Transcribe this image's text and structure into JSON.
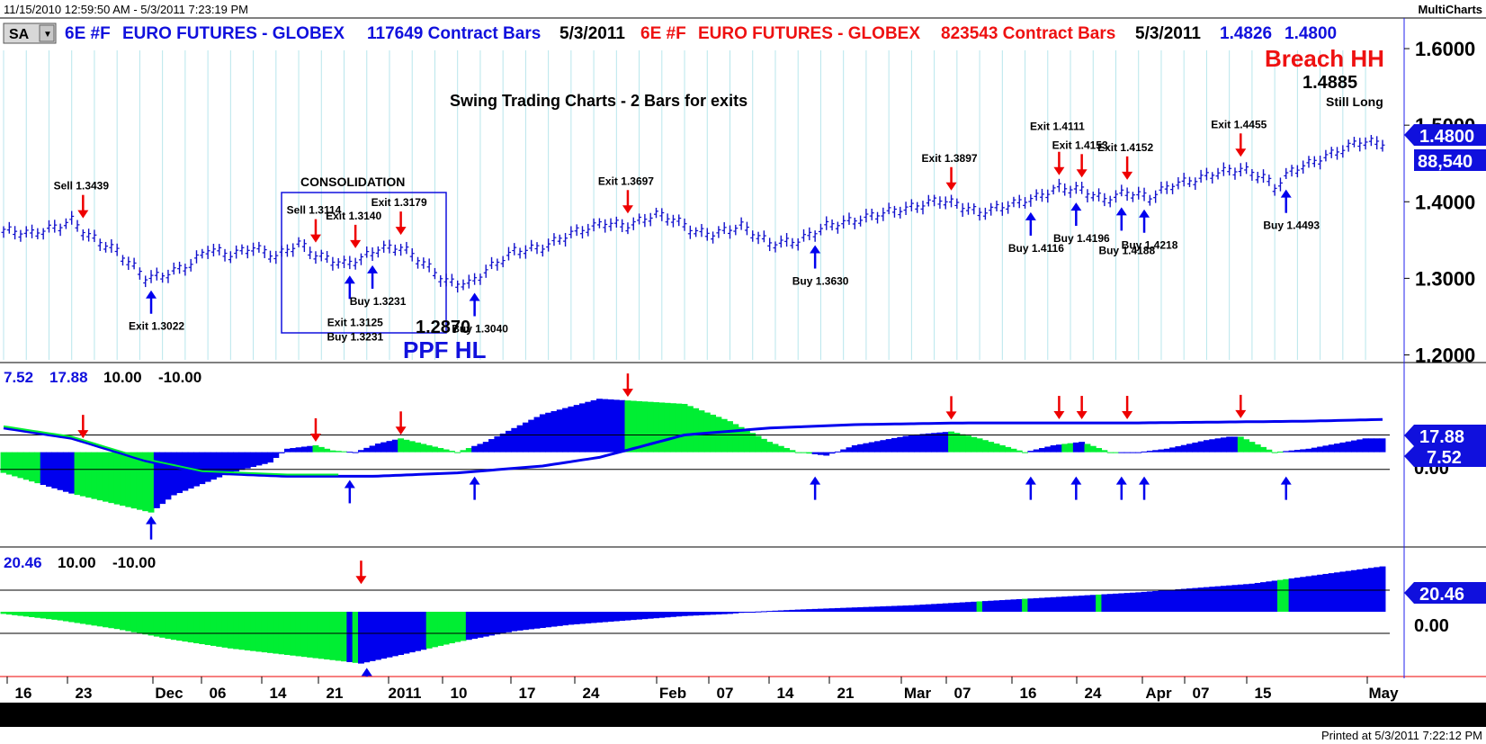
{
  "header": {
    "time_range": "11/15/2010 12:59:50 AM - 5/3/2011 7:23:19 PM",
    "brand": "MultiCharts",
    "sa_label": "SA",
    "symbol1": "6E #F",
    "name1": "EURO FUTURES - GLOBEX",
    "bars1": "117649 Contract Bars",
    "date1": "5/3/2011",
    "symbol2": "6E #F",
    "name2": "EURO FUTURES - GLOBEX",
    "bars2": "823543 Contract Bars",
    "date2": "5/3/2011",
    "quote1": "1.4826",
    "quote2": "1.4800"
  },
  "footer": {
    "printed": "Printed at 5/3/2011 7:22:12 PM"
  },
  "colors": {
    "bull": "#00ee33",
    "bear": "#0000ee",
    "sell": "#ee0000",
    "price": "#1010cc",
    "vline": "#b8e6ec"
  },
  "chart_data": [
    {
      "type": "line",
      "panel": "price",
      "title": "Swing Trading Charts - 2 Bars for exits",
      "ylim": [
        1.19,
        1.64
      ],
      "y_ticks": [
        "1.6000",
        "1.5000",
        "1.4000",
        "1.3000",
        "1.2000"
      ],
      "x_ticks": [
        "16",
        "23",
        "Dec",
        "06",
        "14",
        "21",
        "2011",
        "10",
        "17",
        "24",
        "Feb",
        "07",
        "14",
        "21",
        "Mar",
        "07",
        "16",
        "24",
        "Apr",
        "07",
        "15",
        "May"
      ],
      "last_price": "1.4800",
      "last_volume": "88,540",
      "annotations": {
        "breach": "Breach HH",
        "breach_value": "1.4885",
        "still_long": "Still Long",
        "consolidation": "CONSOLIDATION",
        "ppf_value": "1.2870",
        "ppf": "PPF HL"
      },
      "sell_signals": [
        {
          "label": "Sell 1.3439",
          "bar": 14
        },
        {
          "label": "Sell 1.3114",
          "bar": 55
        },
        {
          "label": "Exit 1.3140",
          "bar": 62
        },
        {
          "label": "Exit 1.3179",
          "bar": 70
        },
        {
          "label": "Exit 1.3697",
          "bar": 110
        },
        {
          "label": "Exit 1.3897",
          "bar": 167
        },
        {
          "label": "Exit 1.4111",
          "bar": 186
        },
        {
          "label": "Exit 1.4153",
          "bar": 190
        },
        {
          "label": "Exit 1.4152",
          "bar": 198
        },
        {
          "label": "Exit 1.4455",
          "bar": 218
        }
      ],
      "buy_signals": [
        {
          "label": "Exit 1.3022",
          "bar": 26
        },
        {
          "label": "Exit 1.3125",
          "bar": 61
        },
        {
          "label": "Buy 1.3231",
          "bar": 65
        },
        {
          "label": "Buy 1.3231",
          "bar": 61
        },
        {
          "label": "Buy 1.3040",
          "bar": 83
        },
        {
          "label": "Buy 1.3630",
          "bar": 143
        },
        {
          "label": "Buy 1.4116",
          "bar": 181
        },
        {
          "label": "Buy 1.4196",
          "bar": 189
        },
        {
          "label": "Buy 1.4188",
          "bar": 197
        },
        {
          "label": "Buy 1.4218",
          "bar": 201
        },
        {
          "label": "Buy 1.4493",
          "bar": 226
        }
      ],
      "price_knots": [
        [
          0,
          1.362
        ],
        [
          5,
          1.358
        ],
        [
          10,
          1.368
        ],
        [
          12,
          1.375
        ],
        [
          15,
          1.355
        ],
        [
          20,
          1.335
        ],
        [
          25,
          1.3
        ],
        [
          28,
          1.303
        ],
        [
          33,
          1.318
        ],
        [
          36,
          1.338
        ],
        [
          40,
          1.33
        ],
        [
          44,
          1.34
        ],
        [
          48,
          1.328
        ],
        [
          52,
          1.345
        ],
        [
          55,
          1.33
        ],
        [
          60,
          1.318
        ],
        [
          63,
          1.325
        ],
        [
          66,
          1.338
        ],
        [
          70,
          1.34
        ],
        [
          73,
          1.325
        ],
        [
          78,
          1.295
        ],
        [
          82,
          1.292
        ],
        [
          86,
          1.315
        ],
        [
          90,
          1.335
        ],
        [
          95,
          1.34
        ],
        [
          100,
          1.358
        ],
        [
          106,
          1.372
        ],
        [
          110,
          1.368
        ],
        [
          115,
          1.383
        ],
        [
          118,
          1.377
        ],
        [
          122,
          1.36
        ],
        [
          125,
          1.357
        ],
        [
          130,
          1.368
        ],
        [
          135,
          1.345
        ],
        [
          140,
          1.348
        ],
        [
          145,
          1.368
        ],
        [
          150,
          1.375
        ],
        [
          155,
          1.385
        ],
        [
          160,
          1.392
        ],
        [
          165,
          1.402
        ],
        [
          168,
          1.396
        ],
        [
          172,
          1.385
        ],
        [
          177,
          1.395
        ],
        [
          182,
          1.405
        ],
        [
          186,
          1.418
        ],
        [
          190,
          1.415
        ],
        [
          194,
          1.402
        ],
        [
          198,
          1.412
        ],
        [
          202,
          1.405
        ],
        [
          206,
          1.422
        ],
        [
          210,
          1.428
        ],
        [
          214,
          1.438
        ],
        [
          218,
          1.442
        ],
        [
          222,
          1.432
        ],
        [
          224,
          1.418
        ],
        [
          227,
          1.44
        ],
        [
          231,
          1.452
        ],
        [
          235,
          1.465
        ],
        [
          239,
          1.478
        ],
        [
          243,
          1.476
        ]
      ]
    },
    {
      "type": "area",
      "panel": "oscillator",
      "readouts": [
        "7.52",
        "17.88",
        "10.00",
        "-10.00"
      ],
      "ylim": [
        -55,
        52
      ],
      "y_ticks": [
        "0.00"
      ],
      "levels": [
        10,
        -10
      ],
      "last_values": [
        "17.88",
        "7.52"
      ],
      "osc_knots": [
        [
          0,
          -12
        ],
        [
          12,
          -24
        ],
        [
          26,
          -35
        ],
        [
          30,
          -25
        ],
        [
          40,
          -12
        ],
        [
          47,
          -6
        ],
        [
          50,
          2
        ],
        [
          55,
          4
        ],
        [
          58,
          1
        ],
        [
          62,
          0
        ],
        [
          66,
          5
        ],
        [
          70,
          8
        ],
        [
          75,
          4
        ],
        [
          80,
          0
        ],
        [
          85,
          6
        ],
        [
          95,
          22
        ],
        [
          105,
          31
        ],
        [
          110,
          30
        ],
        [
          120,
          28
        ],
        [
          128,
          18
        ],
        [
          135,
          6
        ],
        [
          140,
          0
        ],
        [
          145,
          -2
        ],
        [
          150,
          4
        ],
        [
          160,
          10
        ],
        [
          167,
          12
        ],
        [
          172,
          8
        ],
        [
          180,
          0
        ],
        [
          185,
          4
        ],
        [
          190,
          6
        ],
        [
          195,
          0
        ],
        [
          200,
          0
        ],
        [
          205,
          2
        ],
        [
          212,
          7
        ],
        [
          216,
          9
        ],
        [
          218,
          9
        ],
        [
          224,
          0
        ],
        [
          230,
          2
        ],
        [
          240,
          8
        ],
        [
          243,
          8
        ]
      ],
      "osc_colors": [
        [
          0,
          "bull"
        ],
        [
          7,
          "bear"
        ],
        [
          13,
          "bull"
        ],
        [
          27,
          "bear"
        ],
        [
          55,
          "bull"
        ],
        [
          61,
          "bear"
        ],
        [
          70,
          "bull"
        ],
        [
          83,
          "bear"
        ],
        [
          110,
          "bull"
        ],
        [
          143,
          "bear"
        ],
        [
          167,
          "bull"
        ],
        [
          181,
          "bear"
        ],
        [
          187,
          "bull"
        ],
        [
          189,
          "bear"
        ],
        [
          191,
          "bull"
        ],
        [
          197,
          "bear"
        ],
        [
          218,
          "bull"
        ],
        [
          226,
          "bear"
        ]
      ],
      "signal_knots": [
        [
          0,
          14
        ],
        [
          12,
          8
        ],
        [
          25,
          -5
        ],
        [
          35,
          -12
        ],
        [
          50,
          -14
        ],
        [
          65,
          -14
        ],
        [
          80,
          -12
        ],
        [
          95,
          -8
        ],
        [
          105,
          -3
        ],
        [
          112,
          3
        ],
        [
          120,
          10
        ],
        [
          135,
          14
        ],
        [
          150,
          16
        ],
        [
          170,
          17
        ],
        [
          200,
          17
        ],
        [
          230,
          18
        ],
        [
          243,
          19
        ]
      ],
      "sell_bars": [
        14,
        55,
        70,
        110,
        167,
        186,
        190,
        198,
        218
      ],
      "buy_bars": [
        26,
        61,
        83,
        143,
        181,
        189,
        197,
        201,
        226
      ]
    },
    {
      "type": "bar",
      "panel": "trend",
      "readouts": [
        "20.46",
        "10.00",
        "-10.00"
      ],
      "ylim": [
        -30,
        30
      ],
      "y_ticks": [
        "0.00"
      ],
      "levels": [
        10,
        -10
      ],
      "last_value": "20.46",
      "trend_knots": [
        [
          0,
          -1
        ],
        [
          10,
          -4
        ],
        [
          20,
          -8
        ],
        [
          30,
          -13
        ],
        [
          40,
          -17
        ],
        [
          50,
          -20
        ],
        [
          60,
          -23
        ],
        [
          63,
          -24
        ],
        [
          70,
          -20
        ],
        [
          80,
          -14
        ],
        [
          90,
          -9
        ],
        [
          100,
          -6
        ],
        [
          110,
          -4
        ],
        [
          120,
          -2
        ],
        [
          128,
          -1
        ],
        [
          132,
          0
        ],
        [
          140,
          1
        ],
        [
          160,
          3
        ],
        [
          180,
          6
        ],
        [
          200,
          9
        ],
        [
          220,
          13
        ],
        [
          243,
          21
        ]
      ],
      "trend_colors": [
        [
          0,
          "bull"
        ],
        [
          61,
          "bear"
        ],
        [
          62,
          "bull"
        ],
        [
          63,
          "bear"
        ],
        [
          75,
          "bull"
        ],
        [
          82,
          "bear"
        ],
        [
          172,
          "bull"
        ],
        [
          173,
          "bear"
        ],
        [
          180,
          "bull"
        ],
        [
          181,
          "bear"
        ],
        [
          193,
          "bull"
        ],
        [
          194,
          "bear"
        ],
        [
          225,
          "bull"
        ],
        [
          227,
          "bear"
        ]
      ],
      "sell_bars": [
        63
      ],
      "buy_bars": [
        64
      ]
    }
  ]
}
